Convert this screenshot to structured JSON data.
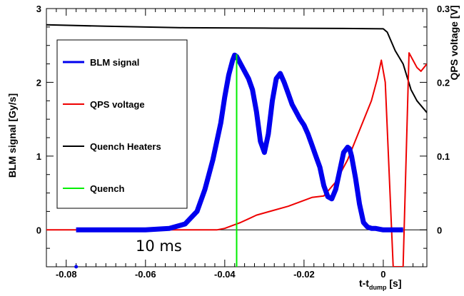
{
  "chart_data": {
    "type": "line",
    "xlabel_main": "t-t",
    "xlabel_sub": "dump",
    "xlabel_unit": " [s]",
    "ylabel_left": "BLM signal [Gy/s]",
    "ylabel_right": "QPS voltage [V]",
    "xlim": [
      -0.085,
      0.011
    ],
    "ylim_left": [
      -0.5,
      3.0
    ],
    "ylim_right": [
      -0.05,
      0.3
    ],
    "x_ticks": [
      -0.08,
      -0.06,
      -0.04,
      -0.02,
      0
    ],
    "x_tick_labels": [
      "-0.08",
      "-0.06",
      "-0.04",
      "-0.02",
      "0"
    ],
    "y_left_ticks": [
      0,
      1,
      2,
      3
    ],
    "y_left_tick_labels": [
      "0",
      "1",
      "2",
      "3"
    ],
    "y_right_ticks": [
      0,
      0.1,
      0.2,
      0.3
    ],
    "y_right_tick_labels": [
      "0",
      "0.1",
      "0.2",
      "0.3"
    ],
    "annotation": "10 ms",
    "legend": [
      "BLM signal",
      "QPS voltage",
      "Quench Heaters",
      "Quench"
    ],
    "colors": {
      "BLM signal": "#0000ee",
      "QPS voltage": "#ee0000",
      "Quench Heaters": "#000000",
      "Quench": "#00ee00"
    },
    "series": [
      {
        "name": "BLM signal",
        "axis": "left",
        "x": [
          -0.0775,
          -0.07,
          -0.06,
          -0.054,
          -0.05,
          -0.047,
          -0.045,
          -0.043,
          -0.041,
          -0.04,
          -0.039,
          -0.038,
          -0.0375,
          -0.037,
          -0.0365,
          -0.036,
          -0.035,
          -0.034,
          -0.033,
          -0.032,
          -0.031,
          -0.03,
          -0.029,
          -0.028,
          -0.027,
          -0.026,
          -0.025,
          -0.024,
          -0.023,
          -0.022,
          -0.021,
          -0.02,
          -0.019,
          -0.018,
          -0.017,
          -0.016,
          -0.015,
          -0.014,
          -0.013,
          -0.012,
          -0.011,
          -0.01,
          -0.009,
          -0.0085,
          -0.008,
          -0.007,
          -0.006,
          -0.005,
          -0.004,
          -0.003,
          -0.002,
          -0.001,
          0.0,
          0.002,
          0.005
        ],
        "y": [
          0.0,
          0.0,
          0.0,
          0.02,
          0.08,
          0.25,
          0.55,
          0.95,
          1.45,
          1.8,
          2.1,
          2.3,
          2.37,
          2.35,
          2.3,
          2.25,
          2.15,
          2.05,
          1.9,
          1.6,
          1.2,
          1.05,
          1.3,
          1.75,
          2.05,
          2.12,
          2.0,
          1.85,
          1.7,
          1.6,
          1.5,
          1.42,
          1.3,
          1.15,
          1.0,
          0.85,
          0.6,
          0.45,
          0.42,
          0.55,
          0.8,
          1.05,
          1.12,
          1.1,
          1.0,
          0.7,
          0.35,
          0.1,
          0.04,
          0.02,
          0.02,
          0.01,
          0.0,
          0.0,
          0.0
        ]
      },
      {
        "name": "QPS voltage",
        "axis": "right",
        "x": [
          -0.085,
          -0.06,
          -0.045,
          -0.042,
          -0.04,
          -0.038,
          -0.036,
          -0.034,
          -0.032,
          -0.028,
          -0.024,
          -0.02,
          -0.018,
          -0.015,
          -0.012,
          -0.009,
          -0.006,
          -0.003,
          -0.0015,
          -0.0005,
          0.0005,
          0.0025,
          0.0035,
          0.004,
          0.005,
          0.0065,
          0.0085,
          0.0095,
          0.011
        ],
        "y": [
          0.0,
          0.0,
          0.0,
          0.0,
          0.002,
          0.006,
          0.01,
          0.015,
          0.02,
          0.026,
          0.032,
          0.04,
          0.044,
          0.046,
          0.065,
          0.095,
          0.135,
          0.175,
          0.205,
          0.23,
          0.2,
          -0.05,
          -0.05,
          -0.05,
          -0.05,
          0.24,
          0.22,
          0.215,
          0.225
        ]
      },
      {
        "name": "Quench Heaters",
        "axis": "right",
        "x": [
          -0.085,
          -0.07,
          -0.05,
          -0.03,
          -0.01,
          0.0,
          0.001,
          0.003,
          0.005,
          0.007,
          0.0085,
          0.011
        ],
        "y": [
          0.278,
          0.276,
          0.274,
          0.2735,
          0.273,
          0.2725,
          0.268,
          0.243,
          0.225,
          0.19,
          0.175,
          0.159
        ]
      },
      {
        "name": "Quench",
        "axis": "left",
        "x": [
          -0.037,
          -0.037
        ],
        "y": [
          -0.5,
          2.38
        ]
      }
    ]
  }
}
